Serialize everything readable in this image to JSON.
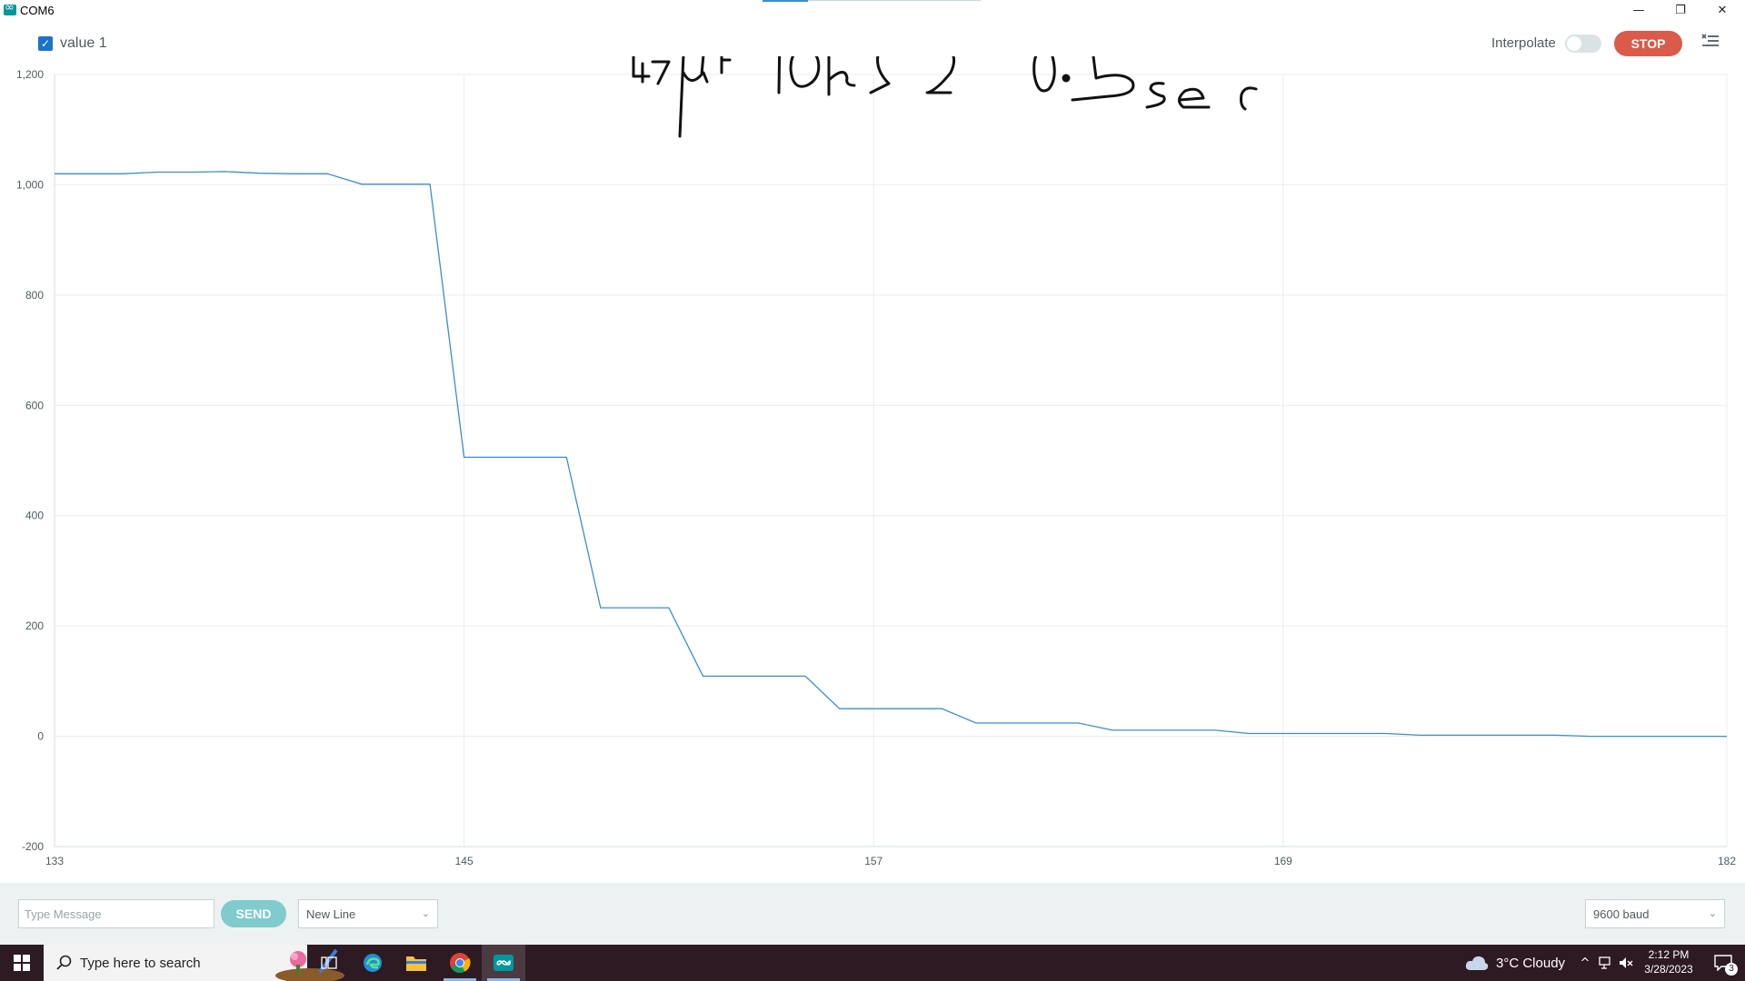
{
  "window": {
    "title": "COM6",
    "controls": [
      "—",
      "❐",
      "✕"
    ]
  },
  "toolbar": {
    "series_label": "value 1",
    "series_checked": true,
    "interpolate_label": "Interpolate",
    "interpolate_on": false,
    "stop_label": "STOP"
  },
  "annotation": {
    "text": "47uF 10kΩ 0.5sec",
    "note": "handwritten"
  },
  "chart_data": {
    "type": "line",
    "series": [
      {
        "name": "value 1",
        "color": "#3b8ed0",
        "x": [
          133,
          135,
          136,
          137,
          138,
          139,
          140,
          141,
          142,
          143,
          144,
          145,
          146,
          147,
          148,
          149,
          150,
          151,
          152,
          153,
          154,
          155,
          156,
          157,
          158,
          159,
          160,
          161,
          162,
          163,
          164,
          165,
          166,
          167,
          168,
          169,
          170,
          171,
          172,
          173,
          174,
          175,
          176,
          177,
          178,
          179,
          180,
          181,
          182
        ],
        "y": [
          1020,
          1020,
          1023,
          1023,
          1024,
          1021,
          1020,
          1020,
          1001,
          1001,
          1001,
          506,
          506,
          506,
          506,
          233,
          233,
          233,
          109,
          109,
          109,
          109,
          50,
          50,
          50,
          50,
          24,
          24,
          24,
          24,
          11,
          11,
          11,
          11,
          5,
          5,
          5,
          5,
          5,
          2,
          2,
          2,
          2,
          2,
          0,
          0,
          0,
          0,
          0
        ]
      }
    ],
    "xlim": [
      133,
      182
    ],
    "ylim": [
      -200,
      1200
    ],
    "xticks": [
      133,
      145,
      157,
      169,
      182
    ],
    "xtick_labels": [
      "133",
      "145",
      "157",
      "169",
      "182"
    ],
    "yticks": [
      -200,
      0,
      200,
      400,
      600,
      800,
      1000,
      1200
    ],
    "ytick_labels": [
      "-200",
      "0",
      "200",
      "400",
      "600",
      "800",
      "1,000",
      "1,200"
    ],
    "grid": true,
    "legend": "top-left"
  },
  "bottom": {
    "message_placeholder": "Type Message",
    "send_label": "SEND",
    "line_ending": "New Line",
    "baud": "9600 baud"
  },
  "taskbar": {
    "search_placeholder": "Type here to search",
    "weather": "3°C  Cloudy",
    "time": "2:12 PM",
    "date": "3/28/2023",
    "notification_count": "3"
  }
}
